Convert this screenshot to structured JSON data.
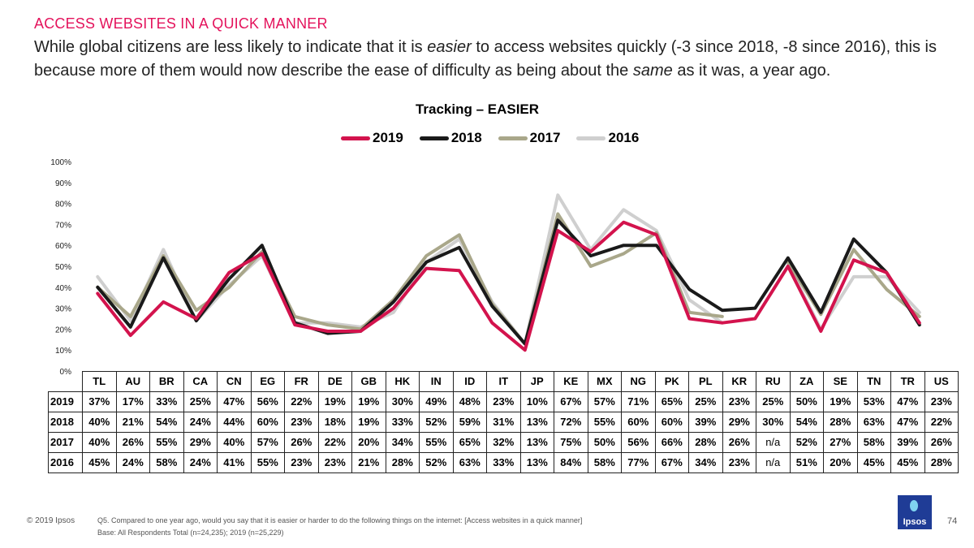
{
  "header": {
    "kicker": "ACCESS WEBSITES IN A QUICK MANNER",
    "subtitle_part1": "While global citizens are less likely to indicate that it is ",
    "subtitle_em1": "easier",
    "subtitle_part2": " to access websites quickly (-3 since 2018, -8 since 2016), this is because more of them would now describe the ease of difficulty as being about the ",
    "subtitle_em2": "same",
    "subtitle_part3": " as it was, a year ago."
  },
  "chart_data": {
    "type": "line",
    "title": "Tracking – EASIER",
    "categories": [
      "TL",
      "AU",
      "BR",
      "CA",
      "CN",
      "EG",
      "FR",
      "DE",
      "GB",
      "HK",
      "IN",
      "ID",
      "IT",
      "JP",
      "KE",
      "MX",
      "NG",
      "PK",
      "PL",
      "KR",
      "RU",
      "ZA",
      "SE",
      "TN",
      "TR",
      "US"
    ],
    "ylim": [
      0,
      100
    ],
    "yticks": [
      "0%",
      "10%",
      "20%",
      "30%",
      "40%",
      "50%",
      "60%",
      "70%",
      "80%",
      "90%",
      "100%"
    ],
    "legend_position": "top",
    "series": [
      {
        "name": "2019",
        "color": "#d3134d",
        "values": [
          37,
          17,
          33,
          25,
          47,
          56,
          22,
          19,
          19,
          30,
          49,
          48,
          23,
          10,
          67,
          57,
          71,
          65,
          25,
          23,
          25,
          50,
          19,
          53,
          47,
          23
        ],
        "labels": [
          "37%",
          "17%",
          "33%",
          "25%",
          "47%",
          "56%",
          "22%",
          "19%",
          "19%",
          "30%",
          "49%",
          "48%",
          "23%",
          "10%",
          "67%",
          "57%",
          "71%",
          "65%",
          "25%",
          "23%",
          "25%",
          "50%",
          "19%",
          "53%",
          "47%",
          "23%"
        ]
      },
      {
        "name": "2018",
        "color": "#1a1a1a",
        "values": [
          40,
          21,
          54,
          24,
          44,
          60,
          23,
          18,
          19,
          33,
          52,
          59,
          31,
          13,
          72,
          55,
          60,
          60,
          39,
          29,
          30,
          54,
          28,
          63,
          47,
          22
        ],
        "labels": [
          "40%",
          "21%",
          "54%",
          "24%",
          "44%",
          "60%",
          "23%",
          "18%",
          "19%",
          "33%",
          "52%",
          "59%",
          "31%",
          "13%",
          "72%",
          "55%",
          "60%",
          "60%",
          "39%",
          "29%",
          "30%",
          "54%",
          "28%",
          "63%",
          "47%",
          "22%"
        ]
      },
      {
        "name": "2017",
        "color": "#a9a78a",
        "values": [
          40,
          26,
          55,
          29,
          40,
          57,
          26,
          22,
          20,
          34,
          55,
          65,
          32,
          13,
          75,
          50,
          56,
          66,
          28,
          26,
          null,
          52,
          27,
          58,
          39,
          26
        ],
        "labels": [
          "40%",
          "26%",
          "55%",
          "29%",
          "40%",
          "57%",
          "26%",
          "22%",
          "20%",
          "34%",
          "55%",
          "65%",
          "32%",
          "13%",
          "75%",
          "50%",
          "56%",
          "66%",
          "28%",
          "26%",
          "n/a",
          "52%",
          "27%",
          "58%",
          "39%",
          "26%"
        ]
      },
      {
        "name": "2016",
        "color": "#cfcfcf",
        "values": [
          45,
          24,
          58,
          24,
          41,
          55,
          23,
          23,
          21,
          28,
          52,
          63,
          33,
          13,
          84,
          58,
          77,
          67,
          34,
          23,
          null,
          51,
          20,
          45,
          45,
          28
        ],
        "labels": [
          "45%",
          "24%",
          "58%",
          "24%",
          "41%",
          "55%",
          "23%",
          "23%",
          "21%",
          "28%",
          "52%",
          "63%",
          "33%",
          "13%",
          "84%",
          "58%",
          "77%",
          "67%",
          "34%",
          "23%",
          "n/a",
          "51%",
          "20%",
          "45%",
          "45%",
          "28%"
        ]
      }
    ]
  },
  "footer": {
    "copyright": "© 2019 Ipsos",
    "question": "Q5. Compared to one year ago, would you say that it is easier or harder to do the following things on the internet: [Access websites in a quick manner]",
    "base": "Base: All Respondents Total (n=24,235); 2019 (n=25,229)",
    "page_number": "74",
    "logo_text": "Ipsos"
  }
}
